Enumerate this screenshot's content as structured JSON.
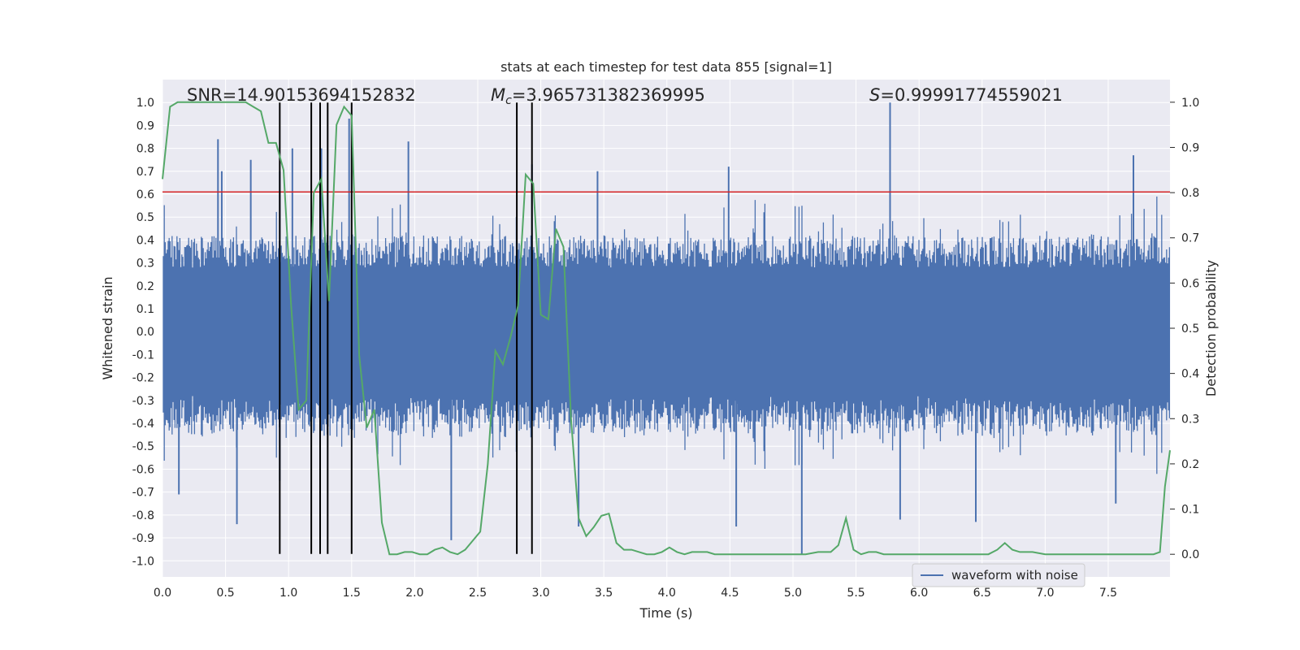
{
  "chart_data": {
    "type": "line",
    "title": "stats at each timestep for test data 855 [signal=1]",
    "xlabel": "Time (s)",
    "ylabel": "Whitened strain",
    "y2label": "Detection probability",
    "xlim": [
      0.0,
      7.99
    ],
    "ylim": [
      -1.07,
      1.1
    ],
    "y2lim": [
      -0.05,
      1.05
    ],
    "xticks": [
      "0.0",
      "0.5",
      "1.0",
      "1.5",
      "2.0",
      "2.5",
      "3.0",
      "3.5",
      "4.0",
      "4.5",
      "5.0",
      "5.5",
      "6.0",
      "6.5",
      "7.0",
      "7.5"
    ],
    "yticks": [
      "1.0",
      "0.9",
      "0.8",
      "0.7",
      "0.6",
      "0.5",
      "0.4",
      "0.3",
      "0.2",
      "0.1",
      "0.0",
      "-0.1",
      "-0.2",
      "-0.3",
      "-0.4",
      "-0.5",
      "-0.6",
      "-0.7",
      "-0.8",
      "-0.9",
      "-1.0"
    ],
    "y2ticks": [
      "1.0",
      "0.9",
      "0.8",
      "0.7",
      "0.6",
      "0.5",
      "0.4",
      "0.3",
      "0.2",
      "0.1",
      "0.0"
    ],
    "grid": true,
    "annotations": {
      "snr": "SNR=14.90153694152832",
      "mc_symbol": "M",
      "mc_sub": "c",
      "mc_value": "=3.965731382369995",
      "s_symbol": "S",
      "s_value": "=0.99991774559021"
    },
    "legend": {
      "label": "waveform with noise",
      "position": "lower-right"
    },
    "threshold_line": {
      "y": 0.61,
      "color": "#d62728"
    },
    "event_lines": {
      "x": [
        0.93,
        1.18,
        1.25,
        1.31,
        1.5,
        2.81,
        2.93
      ],
      "color": "#000000"
    },
    "series": [
      {
        "name": "waveform with noise",
        "color": "#4c72b0",
        "note_envelope": "dense noisy strain, mostly within ±0.45, spikes up to 1.0",
        "spikes": [
          {
            "x": 0.44,
            "y": 0.84
          },
          {
            "x": 0.47,
            "y": 0.7
          },
          {
            "x": 0.7,
            "y": 0.75
          },
          {
            "x": 0.93,
            "y": 0.7
          },
          {
            "x": 1.03,
            "y": 0.8
          },
          {
            "x": 1.26,
            "y": 0.8
          },
          {
            "x": 1.48,
            "y": 0.93
          },
          {
            "x": 1.95,
            "y": 0.83
          },
          {
            "x": 2.93,
            "y": 0.73
          },
          {
            "x": 3.45,
            "y": 0.7
          },
          {
            "x": 4.49,
            "y": 0.72
          },
          {
            "x": 5.77,
            "y": 1.0
          },
          {
            "x": 7.7,
            "y": 0.77
          },
          {
            "x": 0.59,
            "y": -0.84
          },
          {
            "x": 0.13,
            "y": -0.71
          },
          {
            "x": 0.93,
            "y": -0.65
          },
          {
            "x": 2.29,
            "y": -0.91
          },
          {
            "x": 3.3,
            "y": -0.85
          },
          {
            "x": 4.55,
            "y": -0.85
          },
          {
            "x": 5.07,
            "y": -0.97
          },
          {
            "x": 5.85,
            "y": -0.82
          },
          {
            "x": 6.45,
            "y": -0.83
          },
          {
            "x": 7.56,
            "y": -0.75
          }
        ]
      },
      {
        "name": "detection probability",
        "color": "#55a868",
        "axis": "right",
        "x": [
          0.0,
          0.06,
          0.12,
          0.18,
          0.24,
          0.3,
          0.36,
          0.42,
          0.48,
          0.54,
          0.6,
          0.66,
          0.72,
          0.78,
          0.84,
          0.9,
          0.96,
          1.02,
          1.08,
          1.14,
          1.2,
          1.26,
          1.32,
          1.38,
          1.44,
          1.5,
          1.56,
          1.62,
          1.68,
          1.74,
          1.8,
          1.86,
          1.92,
          1.98,
          2.04,
          2.1,
          2.16,
          2.22,
          2.28,
          2.34,
          2.4,
          2.46,
          2.52,
          2.58,
          2.64,
          2.7,
          2.76,
          2.82,
          2.88,
          2.94,
          3.0,
          3.06,
          3.12,
          3.18,
          3.24,
          3.3,
          3.36,
          3.42,
          3.48,
          3.54,
          3.6,
          3.66,
          3.72,
          3.78,
          3.84,
          3.9,
          3.96,
          4.02,
          4.08,
          4.14,
          4.2,
          4.26,
          4.32,
          4.38,
          5.0,
          5.1,
          5.2,
          5.3,
          5.36,
          5.42,
          5.48,
          5.54,
          5.6,
          5.66,
          5.72,
          5.8,
          6.0,
          6.2,
          6.4,
          6.55,
          6.62,
          6.68,
          6.74,
          6.8,
          6.9,
          7.0,
          7.1,
          7.3,
          7.5,
          7.7,
          7.8,
          7.86,
          7.91,
          7.95,
          7.99
        ],
        "y": [
          0.83,
          0.99,
          1.0,
          1.0,
          1.0,
          1.0,
          1.0,
          1.0,
          1.0,
          1.0,
          1.0,
          1.0,
          0.99,
          0.98,
          0.91,
          0.91,
          0.85,
          0.55,
          0.32,
          0.34,
          0.8,
          0.83,
          0.56,
          0.95,
          0.99,
          0.97,
          0.44,
          0.28,
          0.32,
          0.07,
          0.0,
          0.0,
          0.005,
          0.005,
          0.0,
          0.0,
          0.01,
          0.015,
          0.005,
          0.0,
          0.01,
          0.03,
          0.05,
          0.2,
          0.45,
          0.42,
          0.48,
          0.55,
          0.84,
          0.82,
          0.53,
          0.52,
          0.72,
          0.68,
          0.3,
          0.08,
          0.04,
          0.06,
          0.085,
          0.09,
          0.025,
          0.01,
          0.01,
          0.005,
          0.0,
          0.0,
          0.005,
          0.015,
          0.005,
          0.0,
          0.005,
          0.005,
          0.005,
          0.0,
          0.0,
          0.0,
          0.005,
          0.005,
          0.02,
          0.08,
          0.01,
          0.0,
          0.005,
          0.005,
          0.0,
          0.0,
          0.0,
          0.0,
          0.0,
          0.0,
          0.01,
          0.025,
          0.01,
          0.005,
          0.005,
          0.0,
          0.0,
          0.0,
          0.0,
          0.0,
          0.0,
          0.0,
          0.005,
          0.15,
          0.23
        ]
      }
    ]
  }
}
